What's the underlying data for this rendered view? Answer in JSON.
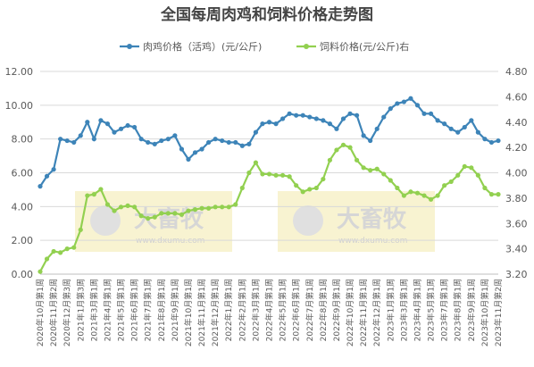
{
  "chart_data": {
    "type": "line",
    "title": "全国每周肉鸡和饲料价格走势图",
    "watermark": [
      "大畜牧",
      "www.dxumu.com"
    ],
    "legend": "top",
    "grid": true,
    "categories": [
      "2020年10月第1周",
      null,
      "2020年11月第2周",
      null,
      "2020年12月第3周",
      null,
      "2021年1月第3周",
      null,
      "2021年3月第1周",
      null,
      "2021年4月第1周",
      null,
      "2021年5月第1周",
      null,
      "2021年6月第1周",
      null,
      "2021年7月第1周",
      null,
      "2021年8月第1周",
      null,
      "2021年9月第1周",
      null,
      "2021年10月第1周",
      null,
      "2021年11月第1周",
      null,
      "2021年12月第1周",
      null,
      "2022年1月第1周",
      null,
      "2022年2月第1周",
      null,
      "2022年3月第1周",
      null,
      "2022年4月第1周",
      null,
      "2022年5月第1周",
      null,
      "2022年6月第1周",
      null,
      "2022年7月第1周",
      null,
      "2022年8月第1周",
      null,
      "2022年9月第1周",
      null,
      "2022年10月第1周",
      null,
      "2022年11月第1周",
      null,
      "2022年12月第1周",
      null,
      "2023年1月第1周",
      null,
      "2023年3月第1周",
      null,
      "2023年4月第1周",
      null,
      "2023年5月第1周",
      null,
      "2023年7月第1周",
      null,
      "2023年8月第1周",
      null,
      "2023年9月第1周",
      null,
      "2023年10月第1周",
      null,
      "2023年11月第2周"
    ],
    "ylim": [
      0,
      12
    ],
    "yticks": [
      {
        "value": 0,
        "label": "0.00"
      },
      {
        "value": 2,
        "label": "2.00"
      },
      {
        "value": 4,
        "label": "4.00"
      },
      {
        "value": 6,
        "label": "6.00"
      },
      {
        "value": 8,
        "label": "8.00"
      },
      {
        "value": 10,
        "label": "10.00"
      },
      {
        "value": 12,
        "label": "12.00"
      }
    ],
    "y2lim": [
      3.2,
      4.8
    ],
    "y2ticks": [
      {
        "value": 3.2,
        "label": "3.20"
      },
      {
        "value": 3.4,
        "label": "3.40"
      },
      {
        "value": 3.6,
        "label": "3.60"
      },
      {
        "value": 3.8,
        "label": "3.80"
      },
      {
        "value": 4.0,
        "label": "4.00"
      },
      {
        "value": 4.2,
        "label": "4.20"
      },
      {
        "value": 4.4,
        "label": "4.40"
      },
      {
        "value": 4.6,
        "label": "4.60"
      },
      {
        "value": 4.8,
        "label": "4.80"
      }
    ],
    "series": [
      {
        "name": "肉鸡价格（活鸡）(元/公斤)",
        "color": "#3d84b8",
        "axis": "y",
        "values": [
          5.2,
          5.8,
          6.2,
          8.0,
          7.9,
          7.8,
          8.2,
          9.0,
          8.0,
          9.1,
          8.9,
          8.4,
          8.6,
          8.8,
          8.7,
          8.0,
          7.8,
          7.7,
          7.9,
          8.0,
          8.2,
          7.4,
          6.8,
          7.2,
          7.4,
          7.8,
          8.0,
          7.9,
          7.8,
          7.8,
          7.6,
          7.7,
          8.4,
          8.9,
          9.0,
          8.9,
          9.2,
          9.5,
          9.4,
          9.4,
          9.3,
          9.2,
          9.1,
          8.9,
          8.6,
          9.2,
          9.5,
          9.4,
          8.2,
          7.9,
          8.6,
          9.3,
          9.8,
          10.1,
          10.2,
          10.4,
          10.0,
          9.5,
          9.5,
          9.1,
          8.9,
          8.6,
          8.4,
          8.7,
          9.1,
          8.4,
          8.0,
          7.8,
          7.9
        ]
      },
      {
        "name": "饲料价格(元/公斤)右",
        "color": "#92d050",
        "axis": "y2",
        "values": [
          3.22,
          3.32,
          3.38,
          3.37,
          3.4,
          3.41,
          3.55,
          3.82,
          3.83,
          3.87,
          3.75,
          3.7,
          3.73,
          3.74,
          3.73,
          3.66,
          3.64,
          3.65,
          3.68,
          3.68,
          3.68,
          3.67,
          3.7,
          3.71,
          3.72,
          3.72,
          3.73,
          3.73,
          3.73,
          3.75,
          3.88,
          4.0,
          4.08,
          3.99,
          3.99,
          3.98,
          3.98,
          3.97,
          3.9,
          3.85,
          3.87,
          3.88,
          3.95,
          4.1,
          4.18,
          4.22,
          4.2,
          4.1,
          4.04,
          4.02,
          4.03,
          3.99,
          3.94,
          3.88,
          3.82,
          3.85,
          3.84,
          3.82,
          3.79,
          3.82,
          3.9,
          3.93,
          3.98,
          4.05,
          4.04,
          3.98,
          3.88,
          3.83,
          3.83
        ]
      }
    ]
  }
}
